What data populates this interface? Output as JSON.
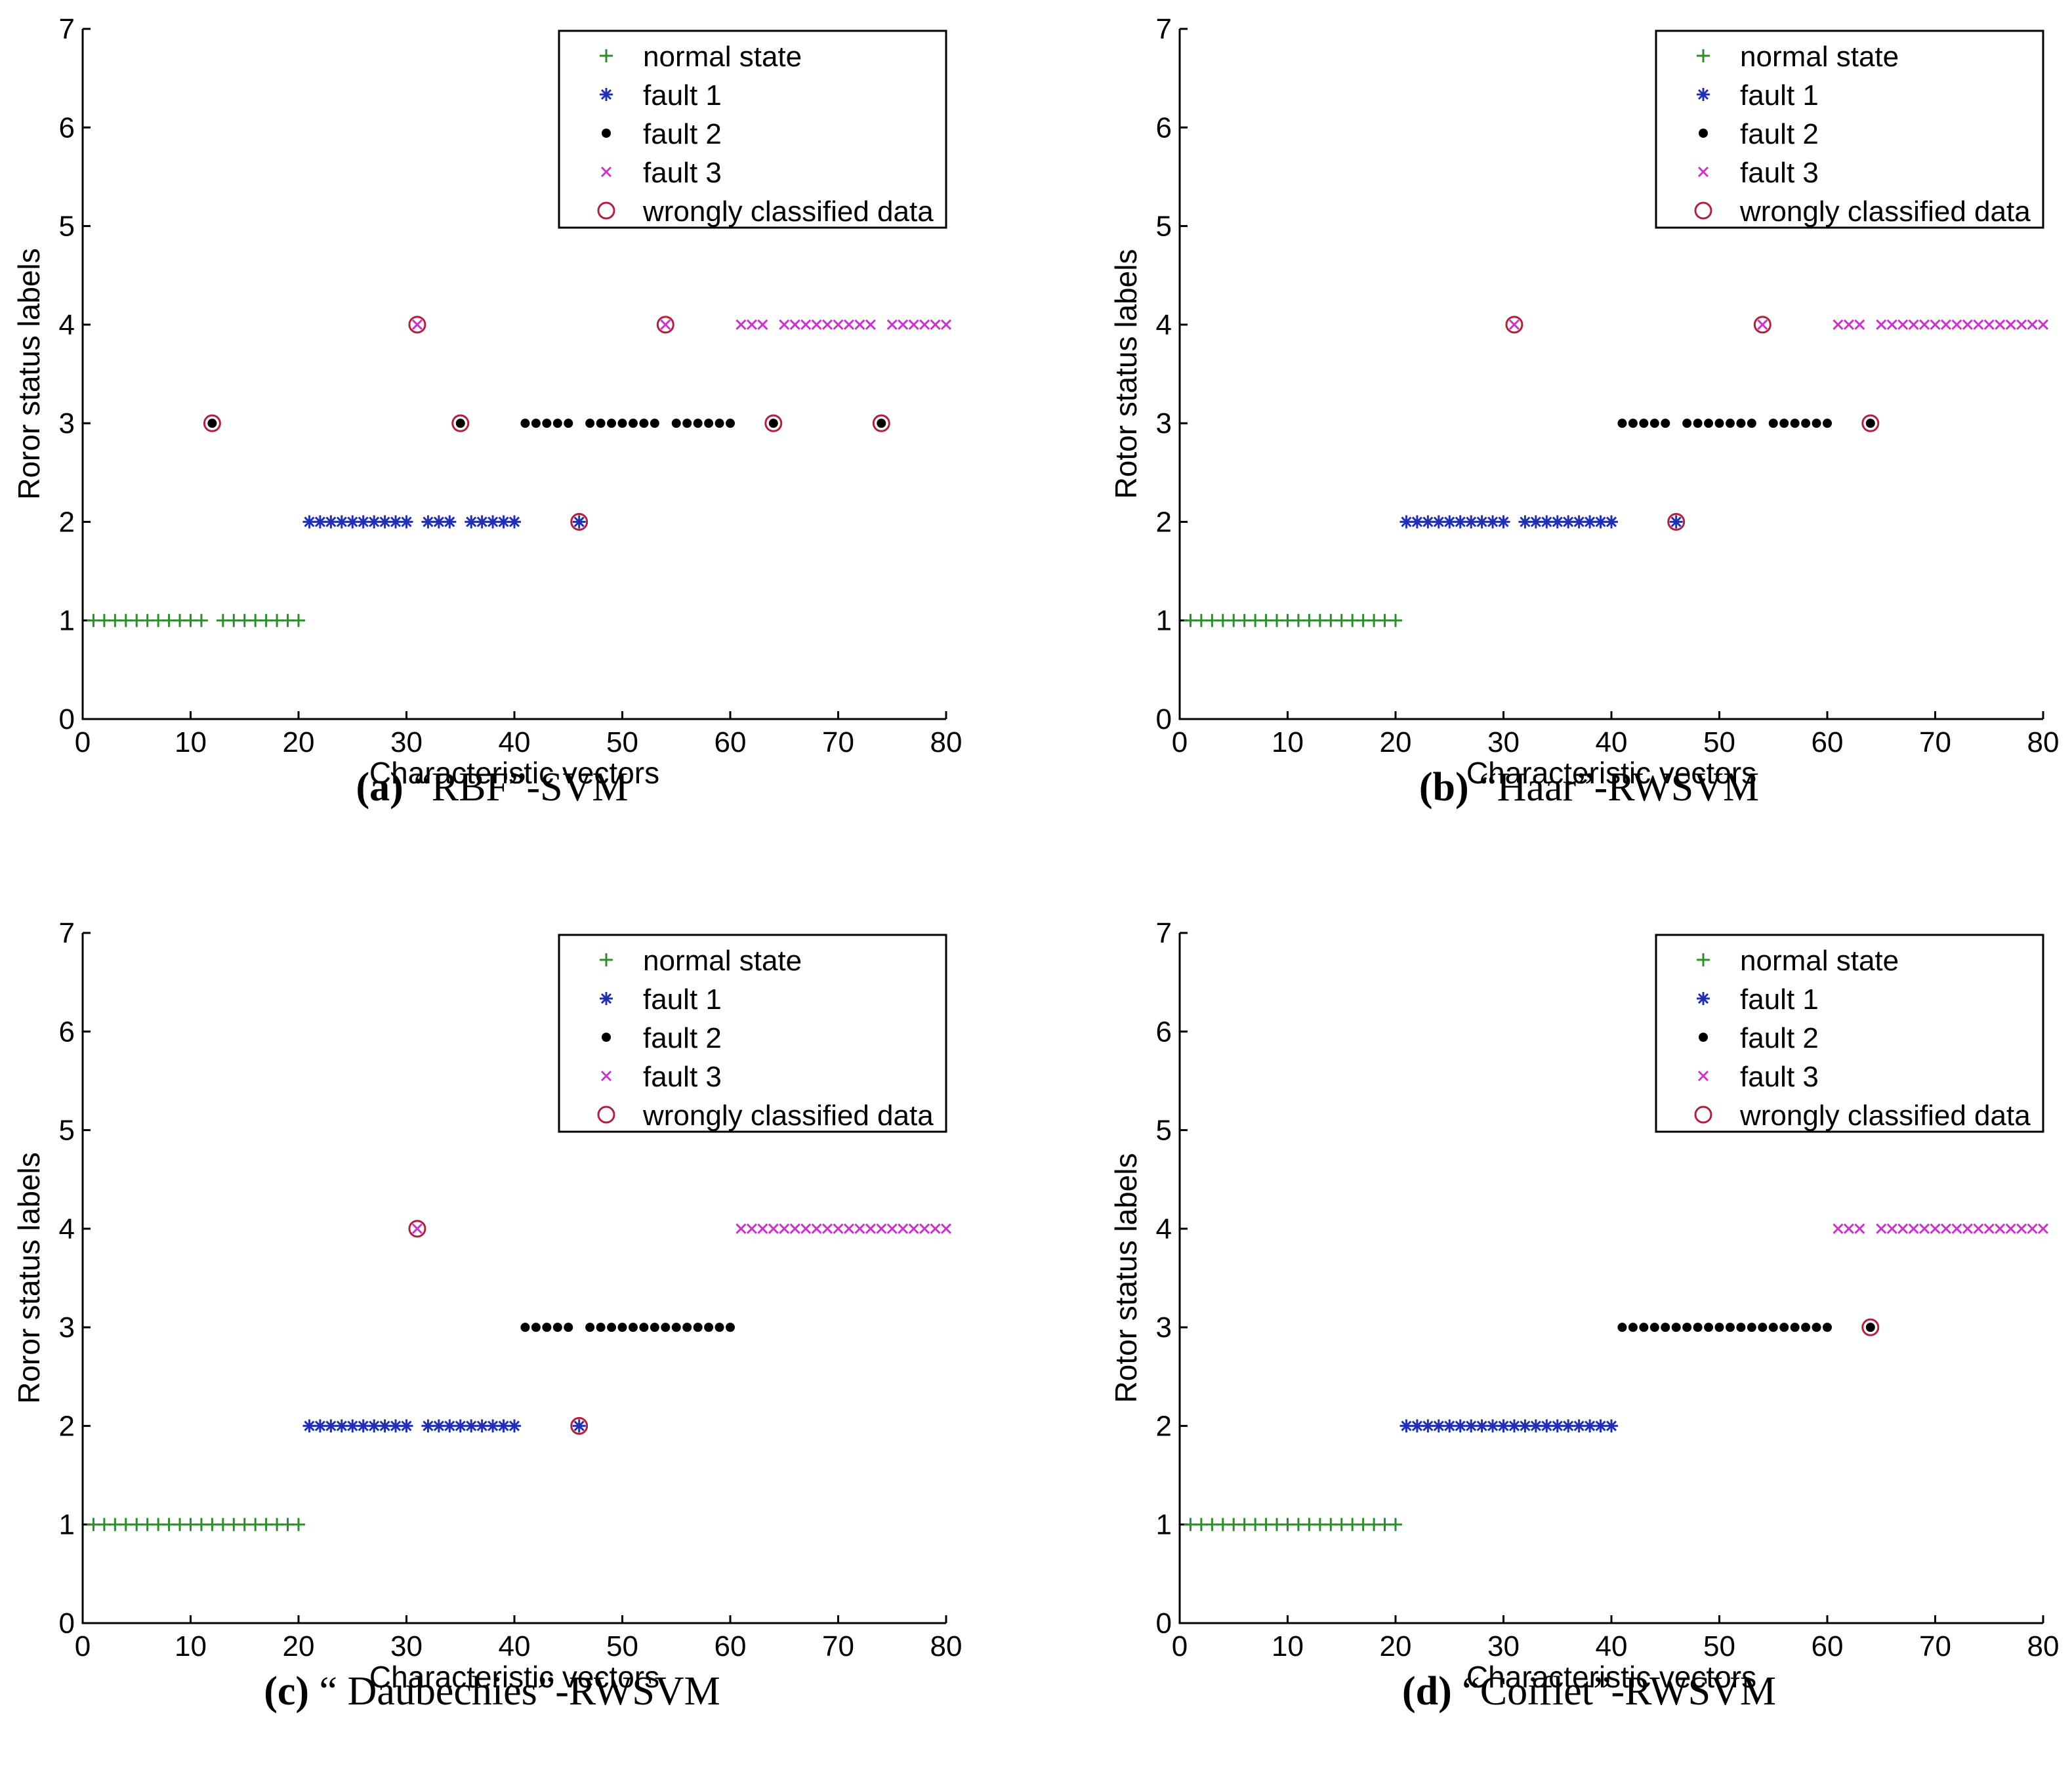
{
  "figure": {
    "colors": {
      "normal": "#2e8b2e",
      "fault1": "#2030b0",
      "fault2": "#000000",
      "fault3": "#cc33cc",
      "wrong": "#b02040"
    },
    "legend_symbols": [
      "plus",
      "star",
      "dot",
      "cross",
      "circle"
    ]
  },
  "chart_data": [
    {
      "type": "scatter",
      "caption_letter": "(a)",
      "caption_text": " “RBF”-SVM",
      "xlabel": "Characteristic vectors",
      "ylabel": "Roror status labels",
      "xlim": [
        0,
        80
      ],
      "ylim": [
        0,
        7
      ],
      "xticks": [
        0,
        10,
        20,
        30,
        40,
        50,
        60,
        70,
        80
      ],
      "yticks": [
        0,
        1,
        2,
        3,
        4,
        5,
        6,
        7
      ],
      "legend": [
        "normal state",
        "fault 1",
        "fault 2",
        "fault 3",
        "wrongly classified data"
      ],
      "legend_position": "top-right",
      "labels": [
        1,
        1,
        1,
        1,
        1,
        1,
        1,
        1,
        1,
        1,
        1,
        3,
        1,
        1,
        1,
        1,
        1,
        1,
        1,
        1,
        2,
        2,
        2,
        2,
        2,
        2,
        2,
        2,
        2,
        2,
        4,
        2,
        2,
        2,
        3,
        2,
        2,
        2,
        2,
        2,
        3,
        3,
        3,
        3,
        3,
        2,
        3,
        3,
        3,
        3,
        3,
        3,
        3,
        4,
        3,
        3,
        3,
        3,
        3,
        3,
        4,
        4,
        4,
        3,
        4,
        4,
        4,
        4,
        4,
        4,
        4,
        4,
        4,
        3,
        4,
        4,
        4,
        4,
        4,
        4
      ],
      "wrong": [
        12,
        31,
        35,
        46,
        54,
        64,
        74
      ]
    },
    {
      "type": "scatter",
      "caption_letter": "(b)",
      "caption_text": " “Haar”-RWSVM",
      "xlabel": "Characteristic vectors",
      "ylabel": "Rotor status labels",
      "xlim": [
        0,
        80
      ],
      "ylim": [
        0,
        7
      ],
      "xticks": [
        0,
        10,
        20,
        30,
        40,
        50,
        60,
        70,
        80
      ],
      "yticks": [
        0,
        1,
        2,
        3,
        4,
        5,
        6,
        7
      ],
      "legend": [
        "normal state",
        "fault 1",
        "fault 2",
        "fault 3",
        "wrongly classified data"
      ],
      "legend_position": "top-right",
      "labels": [
        1,
        1,
        1,
        1,
        1,
        1,
        1,
        1,
        1,
        1,
        1,
        1,
        1,
        1,
        1,
        1,
        1,
        1,
        1,
        1,
        2,
        2,
        2,
        2,
        2,
        2,
        2,
        2,
        2,
        2,
        4,
        2,
        2,
        2,
        2,
        2,
        2,
        2,
        2,
        2,
        3,
        3,
        3,
        3,
        3,
        2,
        3,
        3,
        3,
        3,
        3,
        3,
        3,
        4,
        3,
        3,
        3,
        3,
        3,
        3,
        4,
        4,
        4,
        3,
        4,
        4,
        4,
        4,
        4,
        4,
        4,
        4,
        4,
        4,
        4,
        4,
        4,
        4,
        4,
        4
      ],
      "wrong": [
        31,
        46,
        54,
        64
      ]
    },
    {
      "type": "scatter",
      "caption_letter": "(c)",
      "caption_text": " “ Daubechies”-RWSVM",
      "xlabel": "Characteristic vectors",
      "ylabel": "Roror status labels",
      "xlim": [
        0,
        80
      ],
      "ylim": [
        0,
        7
      ],
      "xticks": [
        0,
        10,
        20,
        30,
        40,
        50,
        60,
        70,
        80
      ],
      "yticks": [
        0,
        1,
        2,
        3,
        4,
        5,
        6,
        7
      ],
      "legend": [
        "normal state",
        "fault 1",
        "fault 2",
        "fault 3",
        "wrongly classified data"
      ],
      "legend_position": "top-right",
      "labels": [
        1,
        1,
        1,
        1,
        1,
        1,
        1,
        1,
        1,
        1,
        1,
        1,
        1,
        1,
        1,
        1,
        1,
        1,
        1,
        1,
        2,
        2,
        2,
        2,
        2,
        2,
        2,
        2,
        2,
        2,
        4,
        2,
        2,
        2,
        2,
        2,
        2,
        2,
        2,
        2,
        3,
        3,
        3,
        3,
        3,
        2,
        3,
        3,
        3,
        3,
        3,
        3,
        3,
        3,
        3,
        3,
        3,
        3,
        3,
        3,
        4,
        4,
        4,
        4,
        4,
        4,
        4,
        4,
        4,
        4,
        4,
        4,
        4,
        4,
        4,
        4,
        4,
        4,
        4,
        4
      ],
      "wrong": [
        31,
        46
      ]
    },
    {
      "type": "scatter",
      "caption_letter": "(d)",
      "caption_text": " “Coiflet”-RWSVM",
      "xlabel": "Characteristic vectors",
      "ylabel": "Rotor status labels",
      "xlim": [
        0,
        80
      ],
      "ylim": [
        0,
        7
      ],
      "xticks": [
        0,
        10,
        20,
        30,
        40,
        50,
        60,
        70,
        80
      ],
      "yticks": [
        0,
        1,
        2,
        3,
        4,
        5,
        6,
        7
      ],
      "legend": [
        "normal state",
        "fault 1",
        "fault 2",
        "fault 3",
        "wrongly classified data"
      ],
      "legend_position": "top-right",
      "labels": [
        1,
        1,
        1,
        1,
        1,
        1,
        1,
        1,
        1,
        1,
        1,
        1,
        1,
        1,
        1,
        1,
        1,
        1,
        1,
        1,
        2,
        2,
        2,
        2,
        2,
        2,
        2,
        2,
        2,
        2,
        2,
        2,
        2,
        2,
        2,
        2,
        2,
        2,
        2,
        2,
        3,
        3,
        3,
        3,
        3,
        3,
        3,
        3,
        3,
        3,
        3,
        3,
        3,
        3,
        3,
        3,
        3,
        3,
        3,
        3,
        4,
        4,
        4,
        3,
        4,
        4,
        4,
        4,
        4,
        4,
        4,
        4,
        4,
        4,
        4,
        4,
        4,
        4,
        4,
        4
      ],
      "wrong": [
        64
      ]
    }
  ]
}
